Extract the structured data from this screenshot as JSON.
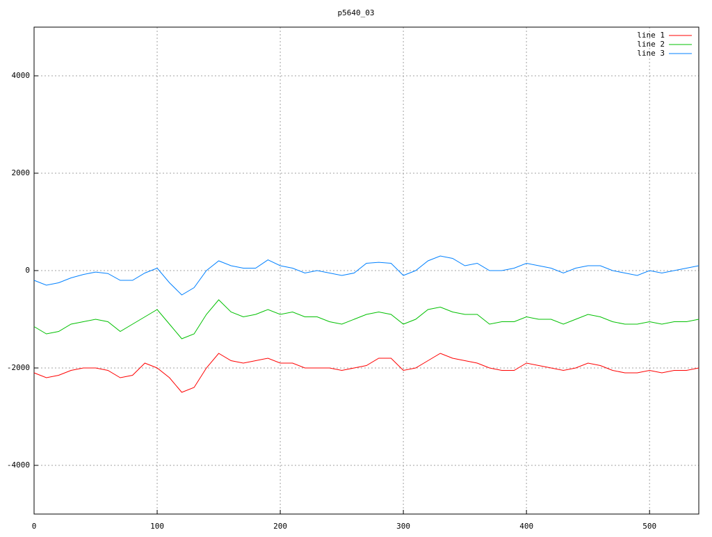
{
  "chart_data": {
    "type": "line",
    "title": "p5640_03",
    "x": [
      0,
      10,
      20,
      30,
      40,
      50,
      60,
      70,
      80,
      90,
      100,
      110,
      120,
      130,
      140,
      150,
      160,
      170,
      180,
      190,
      200,
      210,
      220,
      230,
      240,
      250,
      260,
      270,
      280,
      290,
      300,
      310,
      320,
      330,
      340,
      350,
      360,
      370,
      380,
      390,
      400,
      410,
      420,
      430,
      440,
      450,
      460,
      470,
      480,
      490,
      500,
      510,
      520,
      530,
      540
    ],
    "series": [
      {
        "name": "line 1",
        "color": "#ff0000",
        "values": [
          -2100,
          -2200,
          -2150,
          -2050,
          -2000,
          -2000,
          -2050,
          -2200,
          -2150,
          -1900,
          -2000,
          -2200,
          -2500,
          -2400,
          -2000,
          -1700,
          -1850,
          -1900,
          -1850,
          -1800,
          -1900,
          -1900,
          -2000,
          -2000,
          -2000,
          -2050,
          -2000,
          -1950,
          -1800,
          -1800,
          -2050,
          -2000,
          -1850,
          -1700,
          -1800,
          -1850,
          -1900,
          -2000,
          -2050,
          -2050,
          -1900,
          -1950,
          -2000,
          -2050,
          -2000,
          -1900,
          -1950,
          -2050,
          -2100,
          -2100,
          -2050,
          -2100,
          -2050,
          -2050,
          -2000
        ]
      },
      {
        "name": "line 2",
        "color": "#00c000",
        "values": [
          -1150,
          -1300,
          -1250,
          -1100,
          -1050,
          -1000,
          -1050,
          -1250,
          -1100,
          -950,
          -800,
          -1100,
          -1400,
          -1300,
          -900,
          -600,
          -850,
          -950,
          -900,
          -800,
          -900,
          -850,
          -950,
          -950,
          -1050,
          -1100,
          -1000,
          -900,
          -850,
          -900,
          -1100,
          -1000,
          -800,
          -750,
          -850,
          -900,
          -900,
          -1100,
          -1050,
          -1050,
          -950,
          -1000,
          -1000,
          -1100,
          -1000,
          -900,
          -950,
          -1050,
          -1100,
          -1100,
          -1050,
          -1100,
          -1050,
          -1050,
          -1000
        ]
      },
      {
        "name": "line 3",
        "color": "#0080ff",
        "values": [
          -200,
          -300,
          -250,
          -150,
          -80,
          -30,
          -60,
          -200,
          -200,
          -50,
          50,
          -250,
          -500,
          -350,
          0,
          200,
          100,
          50,
          50,
          220,
          100,
          50,
          -50,
          0,
          -50,
          -100,
          -50,
          150,
          170,
          150,
          -100,
          0,
          200,
          300,
          250,
          100,
          150,
          0,
          0,
          50,
          150,
          100,
          50,
          -50,
          50,
          100,
          100,
          0,
          -50,
          -100,
          0,
          -50,
          0,
          50,
          100
        ]
      }
    ],
    "xlim": [
      0,
      540
    ],
    "xticks": [
      0,
      100,
      200,
      300,
      400,
      500
    ],
    "ylim": [
      -5000,
      5000
    ],
    "yticks": [
      -4000,
      -2000,
      0,
      2000,
      4000
    ],
    "grid": true,
    "legend": "top-right"
  }
}
